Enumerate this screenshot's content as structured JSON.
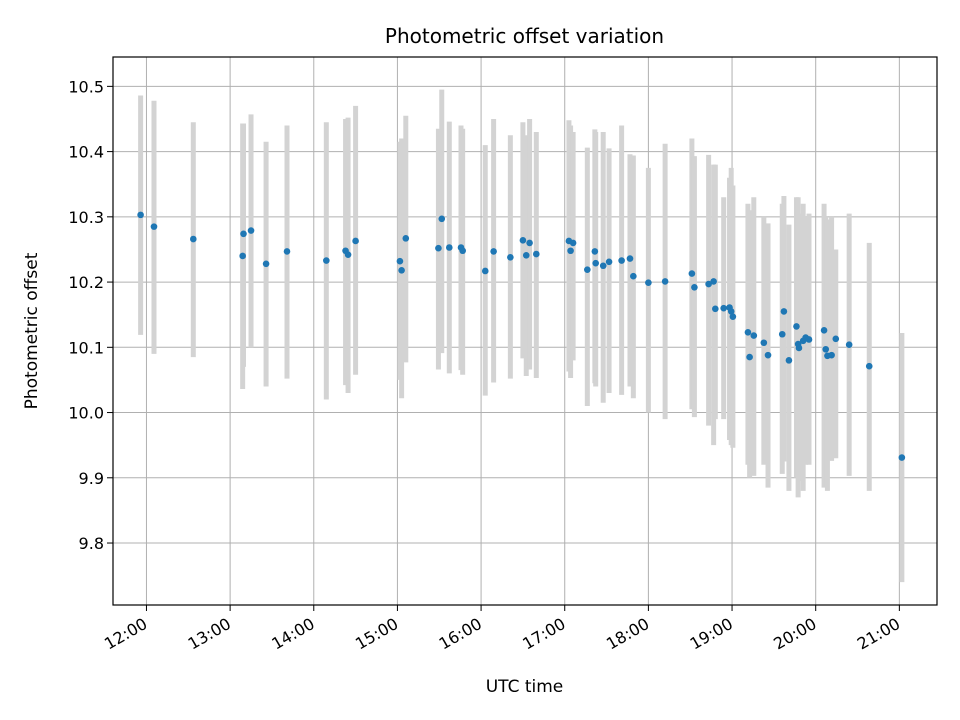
{
  "chart_data": {
    "type": "scatter",
    "title": "Photometric offset variation",
    "xlabel": "UTC time",
    "ylabel": "Photometric offset",
    "x_unit": "hours UTC",
    "xlim": [
      11.6,
      21.45
    ],
    "ylim": [
      9.705,
      10.545
    ],
    "x_ticks": [
      12,
      13,
      14,
      15,
      16,
      17,
      18,
      19,
      20,
      21
    ],
    "x_tick_labels": [
      "12:00",
      "13:00",
      "14:00",
      "15:00",
      "16:00",
      "17:00",
      "18:00",
      "19:00",
      "20:00",
      "21:00"
    ],
    "y_ticks": [
      9.8,
      9.9,
      10.0,
      10.1,
      10.2,
      10.3,
      10.4,
      10.5
    ],
    "y_tick_labels": [
      "9.8",
      "9.9",
      "10.0",
      "10.1",
      "10.2",
      "10.3",
      "10.4",
      "10.5"
    ],
    "grid": true,
    "colors": {
      "point": "#1f77b4",
      "errorbar": "#d3d3d3",
      "grid": "#b0b0b0"
    },
    "series": [
      {
        "x": [
          11.93,
          12.09,
          12.56,
          13.15,
          13.16,
          13.25,
          13.43,
          13.68,
          14.15,
          14.38,
          14.41,
          14.5,
          15.03,
          15.05,
          15.1,
          15.49,
          15.53,
          15.62,
          15.76,
          15.78,
          16.05,
          16.15,
          16.35,
          16.5,
          16.54,
          16.58,
          16.66,
          17.05,
          17.07,
          17.1,
          17.27,
          17.36,
          17.37,
          17.46,
          17.53,
          17.68,
          17.78,
          17.82,
          18.0,
          18.2,
          18.52,
          18.55,
          18.72,
          18.78,
          18.8,
          18.9,
          18.97,
          18.99,
          19.01,
          19.19,
          19.21,
          19.26,
          19.38,
          19.43,
          19.6,
          19.62,
          19.68,
          19.77,
          19.79,
          19.8,
          19.85,
          19.88,
          19.92,
          20.1,
          20.12,
          20.14,
          20.19,
          20.24,
          20.4,
          20.64,
          21.03
        ],
        "y": [
          10.303,
          10.285,
          10.266,
          10.24,
          10.274,
          10.279,
          10.228,
          10.247,
          10.233,
          10.248,
          10.242,
          10.263,
          10.232,
          10.218,
          10.267,
          10.252,
          10.297,
          10.253,
          10.253,
          10.248,
          10.217,
          10.247,
          10.238,
          10.264,
          10.241,
          10.26,
          10.243,
          10.263,
          10.248,
          10.26,
          10.219,
          10.247,
          10.229,
          10.225,
          10.231,
          10.233,
          10.236,
          10.209,
          10.199,
          10.201,
          10.213,
          10.192,
          10.197,
          10.201,
          10.159,
          10.16,
          10.161,
          10.155,
          10.147,
          10.123,
          10.085,
          10.118,
          10.107,
          10.088,
          10.12,
          10.155,
          10.08,
          10.132,
          10.105,
          10.099,
          10.11,
          10.115,
          10.112,
          10.126,
          10.097,
          10.087,
          10.088,
          10.113,
          10.104,
          10.071,
          9.931
        ],
        "err_low": [
          10.119,
          10.09,
          10.085,
          10.036,
          10.07,
          10.1,
          10.04,
          10.052,
          10.02,
          10.042,
          10.03,
          10.058,
          10.05,
          10.022,
          10.077,
          10.066,
          10.091,
          10.06,
          10.065,
          10.058,
          10.026,
          10.046,
          10.052,
          10.083,
          10.056,
          10.066,
          10.053,
          10.063,
          10.053,
          10.08,
          10.01,
          10.045,
          10.04,
          10.015,
          10.03,
          10.027,
          10.04,
          10.022,
          10.0,
          9.99,
          10.005,
          9.993,
          9.98,
          9.95,
          9.99,
          9.99,
          9.958,
          9.95,
          9.946,
          9.92,
          9.9,
          9.903,
          9.92,
          9.885,
          9.906,
          9.925,
          9.88,
          9.9,
          9.87,
          9.895,
          9.88,
          9.92,
          9.92,
          9.885,
          9.89,
          9.88,
          9.926,
          9.93,
          9.903,
          9.88,
          9.74
        ],
        "err_high": [
          10.486,
          10.478,
          10.445,
          10.443,
          10.443,
          10.457,
          10.415,
          10.44,
          10.445,
          10.45,
          10.452,
          10.47,
          10.415,
          10.42,
          10.455,
          10.435,
          10.495,
          10.446,
          10.44,
          10.435,
          10.41,
          10.45,
          10.425,
          10.445,
          10.425,
          10.45,
          10.43,
          10.448,
          10.44,
          10.43,
          10.406,
          10.434,
          10.43,
          10.43,
          10.405,
          10.44,
          10.396,
          10.394,
          10.375,
          10.412,
          10.42,
          10.393,
          10.395,
          10.38,
          10.38,
          10.33,
          10.36,
          10.375,
          10.348,
          10.32,
          10.31,
          10.33,
          10.3,
          10.29,
          10.32,
          10.332,
          10.288,
          10.33,
          10.33,
          10.305,
          10.32,
          10.3,
          10.305,
          10.32,
          10.3,
          10.296,
          10.3,
          10.25,
          10.305,
          10.26,
          10.122
        ]
      }
    ]
  }
}
